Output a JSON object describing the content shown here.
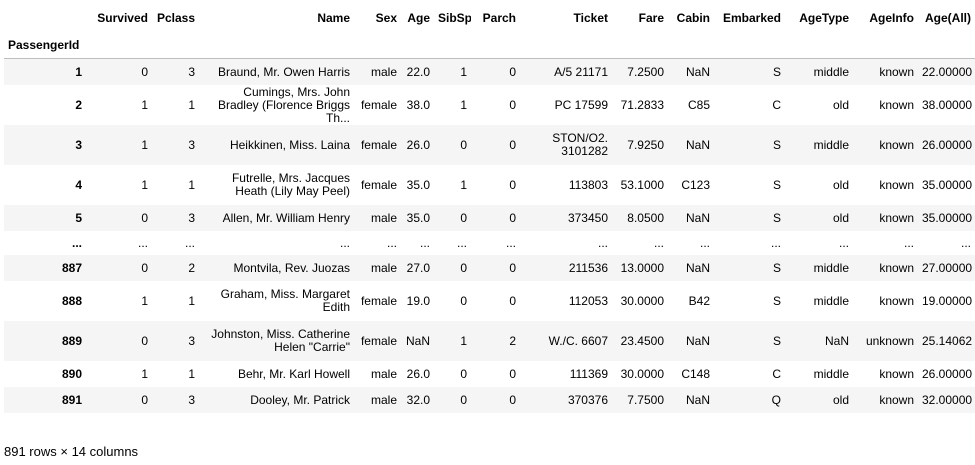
{
  "columns": [
    "Survived",
    "Pclass",
    "Name",
    "Sex",
    "Age",
    "SibSp",
    "Parch",
    "Ticket",
    "Fare",
    "Cabin",
    "Embarked",
    "AgeType",
    "AgeInfo",
    "Age(All)"
  ],
  "index_name": "PassengerId",
  "rows": [
    {
      "id": "1",
      "cells": [
        "0",
        "3",
        "Braund, Mr. Owen Harris",
        "male",
        "22.0",
        "1",
        "0",
        "A/5 21171",
        "7.2500",
        "NaN",
        "S",
        "middle",
        "known",
        "22.00000"
      ]
    },
    {
      "id": "2",
      "cells": [
        "1",
        "1",
        "Cumings, Mrs. John Bradley (Florence Briggs Th...",
        "female",
        "38.0",
        "1",
        "0",
        "PC 17599",
        "71.2833",
        "C85",
        "C",
        "old",
        "known",
        "38.00000"
      ]
    },
    {
      "id": "3",
      "cells": [
        "1",
        "3",
        "Heikkinen, Miss. Laina",
        "female",
        "26.0",
        "0",
        "0",
        "STON/O2. 3101282",
        "7.9250",
        "NaN",
        "S",
        "middle",
        "known",
        "26.00000"
      ]
    },
    {
      "id": "4",
      "cells": [
        "1",
        "1",
        "Futrelle, Mrs. Jacques Heath (Lily May Peel)",
        "female",
        "35.0",
        "1",
        "0",
        "113803",
        "53.1000",
        "C123",
        "S",
        "old",
        "known",
        "35.00000"
      ]
    },
    {
      "id": "5",
      "cells": [
        "0",
        "3",
        "Allen, Mr. William Henry",
        "male",
        "35.0",
        "0",
        "0",
        "373450",
        "8.0500",
        "NaN",
        "S",
        "old",
        "known",
        "35.00000"
      ]
    },
    {
      "id": "...",
      "cells": [
        "...",
        "...",
        "...",
        "...",
        "...",
        "...",
        "...",
        "...",
        "...",
        "...",
        "...",
        "...",
        "...",
        "..."
      ]
    },
    {
      "id": "887",
      "cells": [
        "0",
        "2",
        "Montvila, Rev. Juozas",
        "male",
        "27.0",
        "0",
        "0",
        "211536",
        "13.0000",
        "NaN",
        "S",
        "middle",
        "known",
        "27.00000"
      ]
    },
    {
      "id": "888",
      "cells": [
        "1",
        "1",
        "Graham, Miss. Margaret Edith",
        "female",
        "19.0",
        "0",
        "0",
        "112053",
        "30.0000",
        "B42",
        "S",
        "middle",
        "known",
        "19.00000"
      ]
    },
    {
      "id": "889",
      "cells": [
        "0",
        "3",
        "Johnston, Miss. Catherine Helen \"Carrie\"",
        "female",
        "NaN",
        "1",
        "2",
        "W./C. 6607",
        "23.4500",
        "NaN",
        "S",
        "NaN",
        "unknown",
        "25.14062"
      ]
    },
    {
      "id": "890",
      "cells": [
        "1",
        "1",
        "Behr, Mr. Karl Howell",
        "male",
        "26.0",
        "0",
        "0",
        "111369",
        "30.0000",
        "C148",
        "C",
        "middle",
        "known",
        "26.00000"
      ]
    },
    {
      "id": "891",
      "cells": [
        "0",
        "3",
        "Dooley, Mr. Patrick",
        "male",
        "32.0",
        "0",
        "0",
        "370376",
        "7.7500",
        "NaN",
        "Q",
        "old",
        "known",
        "32.00000"
      ]
    }
  ],
  "footer": "891 rows × 14 columns"
}
